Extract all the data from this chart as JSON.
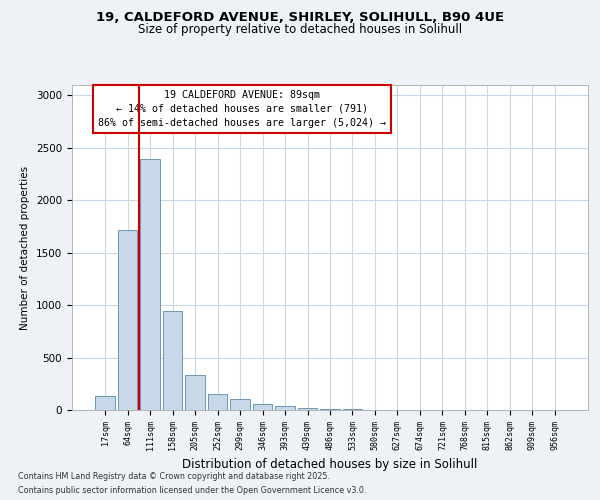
{
  "title_line1": "19, CALDEFORD AVENUE, SHIRLEY, SOLIHULL, B90 4UE",
  "title_line2": "Size of property relative to detached houses in Solihull",
  "xlabel": "Distribution of detached houses by size in Solihull",
  "ylabel": "Number of detached properties",
  "categories": [
    "17sqm",
    "64sqm",
    "111sqm",
    "158sqm",
    "205sqm",
    "252sqm",
    "299sqm",
    "346sqm",
    "393sqm",
    "439sqm",
    "486sqm",
    "533sqm",
    "580sqm",
    "627sqm",
    "674sqm",
    "721sqm",
    "768sqm",
    "815sqm",
    "862sqm",
    "909sqm",
    "956sqm"
  ],
  "values": [
    130,
    1720,
    2390,
    940,
    330,
    155,
    105,
    55,
    40,
    20,
    10,
    5,
    2,
    0,
    0,
    0,
    0,
    0,
    0,
    0,
    0
  ],
  "bar_color": "#c8d8e8",
  "bar_edge_color": "#5a8aaa",
  "vline_x_bar": 1,
  "vline_color": "#cc0000",
  "annotation_title": "19 CALDEFORD AVENUE: 89sqm",
  "annotation_line2": "← 14% of detached houses are smaller (791)",
  "annotation_line3": "86% of semi-detached houses are larger (5,024) →",
  "annotation_box_color": "#cc0000",
  "ylim": [
    0,
    3100
  ],
  "yticks": [
    0,
    500,
    1000,
    1500,
    2000,
    2500,
    3000
  ],
  "footer_line1": "Contains HM Land Registry data © Crown copyright and database right 2025.",
  "footer_line2": "Contains public sector information licensed under the Open Government Licence v3.0.",
  "bg_color": "#eef2f6",
  "plot_bg_color": "#ffffff",
  "grid_color": "#c8d8e8"
}
